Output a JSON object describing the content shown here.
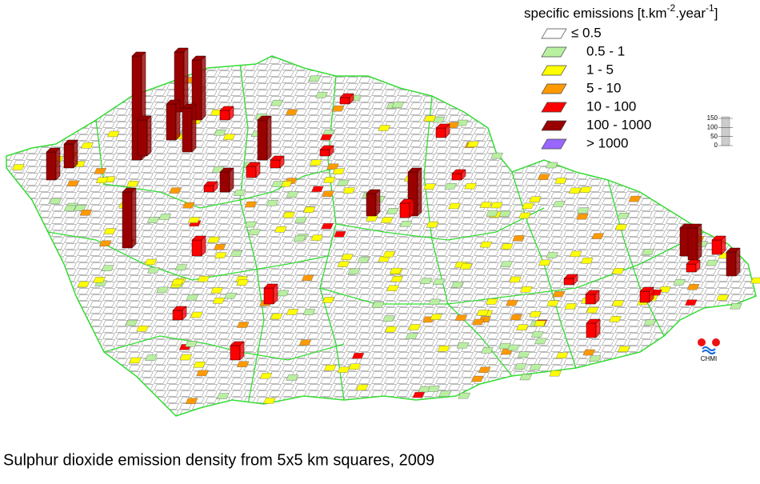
{
  "map": {
    "legend": {
      "title": {
        "text": "specific emissions [t.km",
        "sup1": "-2",
        "mid": ".year",
        "sup2": "-1",
        "end": "]"
      },
      "items": [
        {
          "label": "≤ 0.5",
          "color": "#ffffff"
        },
        {
          "label": "0.5 - 1",
          "color": "#b8f0a0"
        },
        {
          "label": "1 - 5",
          "color": "#ffff00"
        },
        {
          "label": "5 - 10",
          "color": "#ff9900"
        },
        {
          "label": "10 - 100",
          "color": "#ff0000"
        },
        {
          "label": "100 - 1000",
          "color": "#990000"
        },
        {
          "label": "> 1000",
          "color": "#9966ff"
        }
      ]
    },
    "scale": {
      "ticks": [
        150,
        100,
        50,
        0
      ]
    },
    "logo": "CHMI",
    "caption": "Sulphur dioxide emission density from 5x5 km squares, 2009"
  }
}
